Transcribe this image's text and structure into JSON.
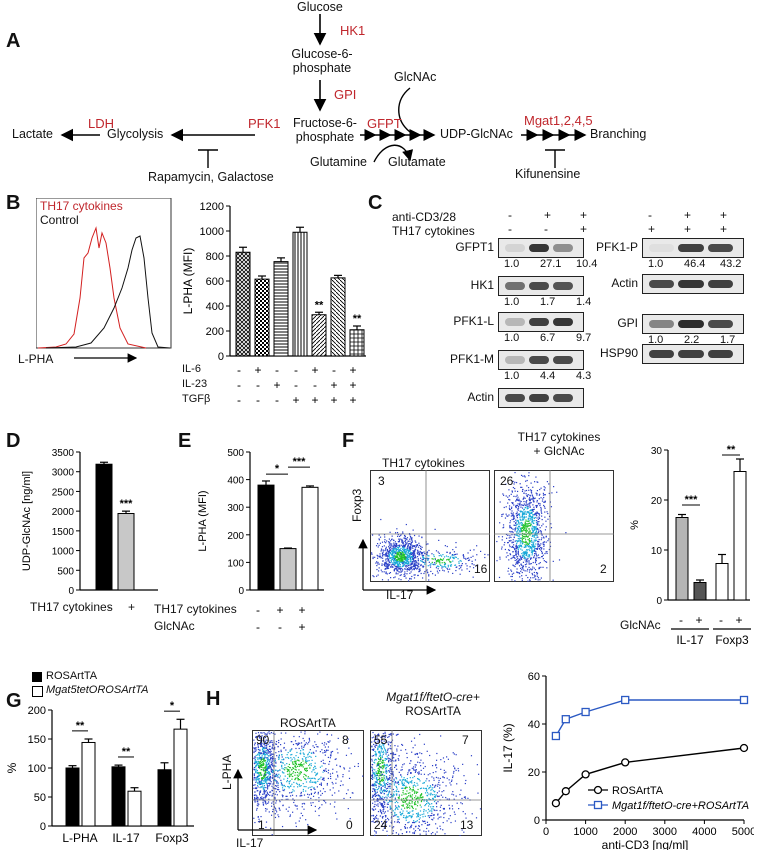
{
  "panel_labels": {
    "A": "A",
    "B": "B",
    "C": "C",
    "D": "D",
    "E": "E",
    "F": "F",
    "G": "G",
    "H": "H"
  },
  "pathway": {
    "glucose": "Glucose",
    "hk1": "HK1",
    "g6p_1": "Glucose-6-",
    "g6p_2": "phosphate",
    "gpi": "GPI",
    "f6p_1": "Fructose-6-",
    "f6p_2": "phosphate",
    "gfpt": "GFPT",
    "glcnac": "GlcNAc",
    "udp": "UDP-GlcNAc",
    "mgat": "Mgat1,2,4,5",
    "branching": "Branching",
    "pfk1": "PFK1",
    "glycolysis": "Glycolysis",
    "ldh": "LDH",
    "lactate": "Lactate",
    "rapamycin": "Rapamycin, Galactose",
    "glutamine": "Glutamine",
    "glutamate": "Glutamate",
    "kifunensine": "Kifunensine"
  },
  "panelB": {
    "legend_th17": "TH17 cytokines",
    "legend_control": "Control",
    "hist_xlabel": "L-PHA",
    "row_labels": [
      "IL-6",
      "IL-23",
      "TGFβ"
    ],
    "rows": [
      [
        "-",
        "+",
        "-",
        "-",
        "+",
        "-",
        "+"
      ],
      [
        "-",
        "-",
        "+",
        "-",
        "-",
        "+",
        "+"
      ],
      [
        "-",
        "-",
        "-",
        "+",
        "+",
        "+",
        "+"
      ]
    ],
    "sig": [
      "**",
      "**"
    ]
  },
  "panelC": {
    "header_cd3": "anti-CD3/28",
    "header_th17": "TH17 cytokines",
    "signs_left_cd3": [
      "-",
      "+",
      "+"
    ],
    "signs_left_th17": [
      "-",
      "-",
      "+"
    ],
    "signs_right_cd3": [
      "-",
      "+",
      "+"
    ],
    "signs_right_th17": [
      "+",
      "+",
      "+"
    ],
    "left": [
      {
        "name": "GFPT1",
        "values": [
          "1.0",
          "27.1",
          "10.4"
        ]
      },
      {
        "name": "HK1",
        "values": [
          "1.0",
          "1.7",
          "1.4"
        ]
      },
      {
        "name": "PFK1-L",
        "values": [
          "1.0",
          "6.7",
          "9.7"
        ]
      },
      {
        "name": "PFK1-M",
        "values": [
          "1.0",
          "4.4",
          "4.3"
        ]
      },
      {
        "name": "Actin",
        "values": []
      }
    ],
    "right": [
      {
        "name": "PFK1-P",
        "values": [
          "1.0",
          "46.4",
          "43.2"
        ]
      },
      {
        "name": "Actin",
        "values": []
      },
      {
        "name": "GPI",
        "values": [
          "1.0",
          "2.2",
          "1.7"
        ]
      },
      {
        "name": "HSP90",
        "values": []
      }
    ]
  },
  "panelD": {
    "row_label": "TH17 cytokines",
    "signs": [
      "-",
      "+"
    ],
    "sig": "***"
  },
  "panelE": {
    "row1": "TH17 cytokines",
    "row2": "GlcNAc",
    "signs1": [
      "-",
      "+",
      "+"
    ],
    "signs2": [
      "-",
      "-",
      "+"
    ],
    "sig": [
      "*",
      "***"
    ]
  },
  "panelF": {
    "plot1_title": "TH17 cytokines",
    "plot2_title_1": "TH17 cytokines",
    "plot2_title_2": "+ GlcNAc",
    "plot1_ul": "3",
    "plot1_lr": "16",
    "plot2_ul": "26",
    "plot2_lr": "2",
    "yaxis": "Foxp3",
    "xaxis": "IL-17",
    "bar_row": "GlcNAc",
    "bar_signs": [
      "-",
      "+",
      "-",
      "+"
    ],
    "groups": [
      "IL-17",
      "Foxp3"
    ],
    "sig": [
      "***",
      "**"
    ]
  },
  "panelG": {
    "legend1": "ROSArtTA",
    "legend2": "Mgat5tetOROSArtTA",
    "sig": [
      "**",
      "**",
      "*"
    ]
  },
  "panelH": {
    "plot1_title": "ROSArtTA",
    "plot2_title_1": "Mgat1f/ftetO-cre+",
    "plot2_title_2": "ROSArtTA",
    "p1": {
      "ul": "90",
      "ur": "8",
      "ll": "1",
      "lr": "0"
    },
    "p2": {
      "ul": "55",
      "ur": "7",
      "ll": "24",
      "lr": "13"
    },
    "yaxis": "L-PHA",
    "xaxis": "IL-17",
    "legend1": "ROSArtTA",
    "legend2": "Mgat1f/ftetO-cre+ROSArtTA"
  },
  "chart_data": [
    {
      "id": "B",
      "type": "bar",
      "ylabel": "L-PHA (MFI)",
      "ylim": [
        0,
        1200
      ],
      "yticks": [
        0,
        200,
        400,
        600,
        800,
        1000,
        1200
      ],
      "values": [
        830,
        615,
        755,
        990,
        330,
        625,
        210
      ],
      "errors": [
        40,
        25,
        30,
        40,
        20,
        20,
        30
      ]
    },
    {
      "id": "D",
      "type": "bar",
      "ylabel": "UDP-GlcNAc [ng/ml]",
      "ylim": [
        0,
        3500
      ],
      "yticks": [
        0,
        500,
        1000,
        1500,
        2000,
        2500,
        3000,
        3500
      ],
      "values": [
        3190,
        1940
      ],
      "errors": [
        50,
        60
      ],
      "colors": [
        "#000000",
        "#c8c8c8"
      ]
    },
    {
      "id": "E",
      "type": "bar",
      "ylabel": "L-PHA (MFI)",
      "ylim": [
        0,
        500
      ],
      "yticks": [
        0,
        100,
        200,
        300,
        400,
        500
      ],
      "values": [
        380,
        150,
        372
      ],
      "errors": [
        15,
        2,
        5
      ],
      "colors": [
        "#000000",
        "#c8c8c8",
        "#ffffff"
      ]
    },
    {
      "id": "F",
      "type": "bar",
      "ylabel": "%",
      "ylim": [
        0,
        30
      ],
      "yticks": [
        0,
        10,
        20,
        30
      ],
      "values": [
        16.5,
        3.5,
        7.3,
        25.7
      ],
      "errors": [
        0.6,
        0.5,
        1.8,
        2.5
      ],
      "colors": [
        "#b5b5b5",
        "#555555",
        "#ffffff",
        "#ffffff"
      ]
    },
    {
      "id": "G",
      "type": "bar",
      "ylabel": "%",
      "ylim": [
        0,
        200
      ],
      "yticks": [
        0,
        50,
        100,
        150,
        200
      ],
      "categories": [
        "L-PHA",
        "IL-17",
        "Foxp3"
      ],
      "series": [
        {
          "name": "ROSArtTA",
          "values": [
            100,
            102,
            97
          ],
          "errors": [
            4,
            3,
            12
          ]
        },
        {
          "name": "Mgat5tetOROSArtTA",
          "values": [
            144,
            60,
            167
          ],
          "errors": [
            6,
            6,
            17
          ]
        }
      ]
    },
    {
      "id": "H",
      "type": "line",
      "xlabel": "anti-CD3 [ng/ml]",
      "ylabel": "IL-17 (%)",
      "xlim": [
        0,
        5000
      ],
      "ylim": [
        0,
        60
      ],
      "xticks": [
        0,
        1000,
        2000,
        3000,
        4000,
        5000
      ],
      "yticks": [
        0,
        20,
        40,
        60
      ],
      "series": [
        {
          "name": "ROSArtTA",
          "x": [
            250,
            500,
            1000,
            2000,
            5000
          ],
          "y": [
            7,
            12,
            19,
            24,
            30
          ],
          "color": "#000000"
        },
        {
          "name": "Mgat1f/ftetO-cre+ROSArtTA",
          "x": [
            250,
            500,
            1000,
            2000,
            5000
          ],
          "y": [
            35,
            42,
            45,
            50,
            50
          ],
          "color": "#2b59c3"
        }
      ]
    }
  ]
}
